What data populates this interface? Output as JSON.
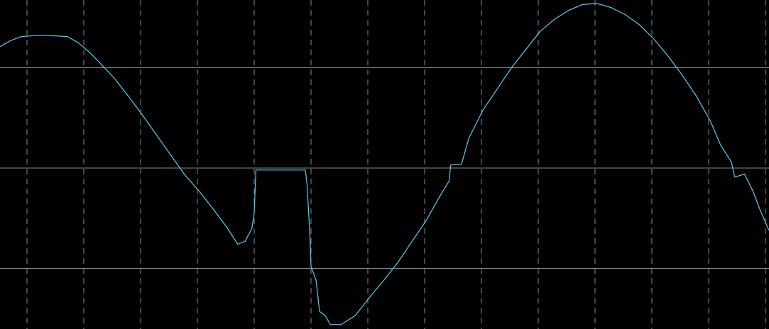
{
  "chart_data": {
    "type": "line",
    "title": "",
    "xlabel": "",
    "ylabel": "",
    "units": "grid divisions",
    "xlim": [
      -0.475,
      13.06
    ],
    "ylim": [
      -1.6,
      1.67
    ],
    "grid": {
      "vertical": "dashed",
      "horizontal": "solid",
      "vertical_positions": [
        0,
        1,
        2,
        3,
        4,
        5,
        6,
        7,
        8,
        9,
        10,
        11,
        12,
        13
      ],
      "horizontal_positions": [
        1,
        0,
        -1
      ]
    },
    "background_color": "#000000",
    "grid_color": "#8a8a8a",
    "series": [
      {
        "color": "#5cccf5",
        "x": [
          -0.475,
          -0.29,
          -0.1,
          0.15,
          0.4,
          0.71,
          0.9,
          1.09,
          1.28,
          1.53,
          1.78,
          2.03,
          2.28,
          2.53,
          2.78,
          3.03,
          3.28,
          3.53,
          3.71,
          3.84,
          3.96,
          4.0,
          4.03,
          4.53,
          4.9,
          4.93,
          4.98,
          5.0,
          5.09,
          5.15,
          5.25,
          5.34,
          5.53,
          5.78,
          6.03,
          6.28,
          6.53,
          6.78,
          7.03,
          7.28,
          7.43,
          7.46,
          7.65,
          7.78,
          8.03,
          8.28,
          8.53,
          8.78,
          9.03,
          9.28,
          9.53,
          9.78,
          10.03,
          10.28,
          10.53,
          10.78,
          11.03,
          11.28,
          11.53,
          11.78,
          12.03,
          12.21,
          12.4,
          12.46,
          12.63,
          12.78,
          12.9,
          13.06
        ],
        "y": [
          1.21,
          1.27,
          1.31,
          1.32,
          1.32,
          1.31,
          1.25,
          1.16,
          1.05,
          0.9,
          0.72,
          0.53,
          0.33,
          0.13,
          -0.07,
          -0.23,
          -0.41,
          -0.6,
          -0.76,
          -0.73,
          -0.6,
          -0.45,
          -0.02,
          -0.02,
          -0.02,
          -0.16,
          -0.66,
          -0.98,
          -1.12,
          -1.43,
          -1.47,
          -1.56,
          -1.56,
          -1.47,
          -1.29,
          -1.12,
          -0.94,
          -0.73,
          -0.52,
          -0.27,
          -0.13,
          0.03,
          0.04,
          0.3,
          0.58,
          0.79,
          1.0,
          1.18,
          1.36,
          1.48,
          1.57,
          1.63,
          1.64,
          1.6,
          1.53,
          1.43,
          1.29,
          1.12,
          0.93,
          0.72,
          0.47,
          0.23,
          0.06,
          -0.09,
          -0.06,
          -0.23,
          -0.41,
          -0.62
        ]
      }
    ]
  }
}
